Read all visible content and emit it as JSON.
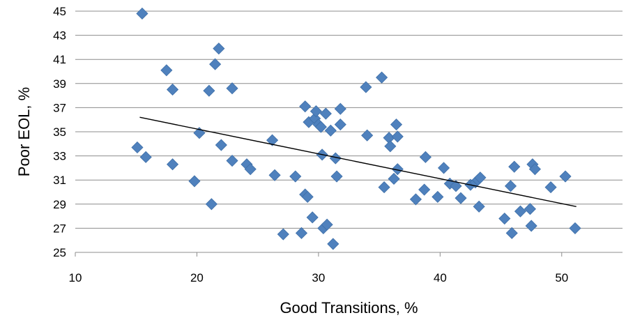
{
  "chart_data": {
    "type": "scatter",
    "title": "",
    "xlabel": "Good Transitions, %",
    "ylabel": "Poor EOL, %",
    "xlim": [
      10,
      55
    ],
    "ylim": [
      25,
      45
    ],
    "xticks": [
      10,
      20,
      30,
      40,
      50
    ],
    "yticks": [
      25,
      27,
      29,
      31,
      33,
      35,
      37,
      39,
      41,
      43,
      45
    ],
    "grid": "horizontal",
    "legend": "none",
    "colors": {
      "marker": "#4f81bd",
      "trendline": "#000000",
      "gridline": "#8c8c8c"
    },
    "series": [
      {
        "marker": "diamond",
        "points": [
          [
            15.5,
            44.8
          ],
          [
            17.5,
            40.1
          ],
          [
            18.0,
            38.5
          ],
          [
            21.5,
            40.6
          ],
          [
            21.8,
            41.9
          ],
          [
            21.0,
            38.4
          ],
          [
            22.9,
            38.6
          ],
          [
            15.1,
            33.7
          ],
          [
            15.8,
            32.9
          ],
          [
            18.0,
            32.3
          ],
          [
            19.8,
            30.9
          ],
          [
            20.2,
            34.9
          ],
          [
            21.2,
            29.0
          ],
          [
            22.0,
            33.9
          ],
          [
            22.9,
            32.6
          ],
          [
            24.1,
            32.3
          ],
          [
            24.4,
            31.9
          ],
          [
            26.2,
            34.3
          ],
          [
            26.4,
            31.4
          ],
          [
            27.1,
            26.5
          ],
          [
            28.1,
            31.3
          ],
          [
            28.6,
            26.6
          ],
          [
            28.9,
            37.1
          ],
          [
            28.9,
            29.8
          ],
          [
            29.1,
            29.6
          ],
          [
            29.2,
            35.8
          ],
          [
            29.5,
            27.9
          ],
          [
            29.7,
            36.1
          ],
          [
            29.8,
            36.7
          ],
          [
            30.0,
            35.6
          ],
          [
            30.2,
            35.4
          ],
          [
            30.3,
            33.1
          ],
          [
            30.4,
            27.0
          ],
          [
            30.6,
            36.5
          ],
          [
            30.7,
            27.3
          ],
          [
            31.0,
            35.1
          ],
          [
            31.2,
            25.7
          ],
          [
            31.4,
            32.8
          ],
          [
            31.5,
            31.3
          ],
          [
            31.8,
            36.9
          ],
          [
            31.8,
            35.6
          ],
          [
            33.9,
            38.7
          ],
          [
            34.0,
            34.7
          ],
          [
            35.2,
            39.5
          ],
          [
            35.4,
            30.4
          ],
          [
            35.8,
            34.5
          ],
          [
            35.9,
            33.8
          ],
          [
            36.2,
            31.1
          ],
          [
            36.4,
            35.6
          ],
          [
            36.5,
            34.6
          ],
          [
            36.5,
            31.9
          ],
          [
            38.0,
            29.4
          ],
          [
            38.7,
            30.2
          ],
          [
            38.8,
            32.9
          ],
          [
            39.8,
            29.6
          ],
          [
            40.3,
            32.0
          ],
          [
            40.8,
            30.7
          ],
          [
            41.3,
            30.5
          ],
          [
            41.7,
            29.5
          ],
          [
            42.5,
            30.6
          ],
          [
            42.9,
            30.8
          ],
          [
            43.1,
            31.0
          ],
          [
            43.2,
            28.8
          ],
          [
            43.3,
            31.2
          ],
          [
            45.3,
            27.8
          ],
          [
            45.8,
            30.5
          ],
          [
            45.9,
            26.6
          ],
          [
            46.1,
            32.1
          ],
          [
            46.6,
            28.4
          ],
          [
            47.4,
            28.6
          ],
          [
            47.5,
            27.2
          ],
          [
            47.6,
            32.3
          ],
          [
            47.8,
            31.9
          ],
          [
            49.1,
            30.4
          ],
          [
            50.3,
            31.3
          ],
          [
            51.1,
            27.0
          ]
        ]
      }
    ],
    "trendline": {
      "type": "linear",
      "x_range": [
        15.3,
        51.2
      ],
      "y_range": [
        36.2,
        28.8
      ]
    }
  }
}
